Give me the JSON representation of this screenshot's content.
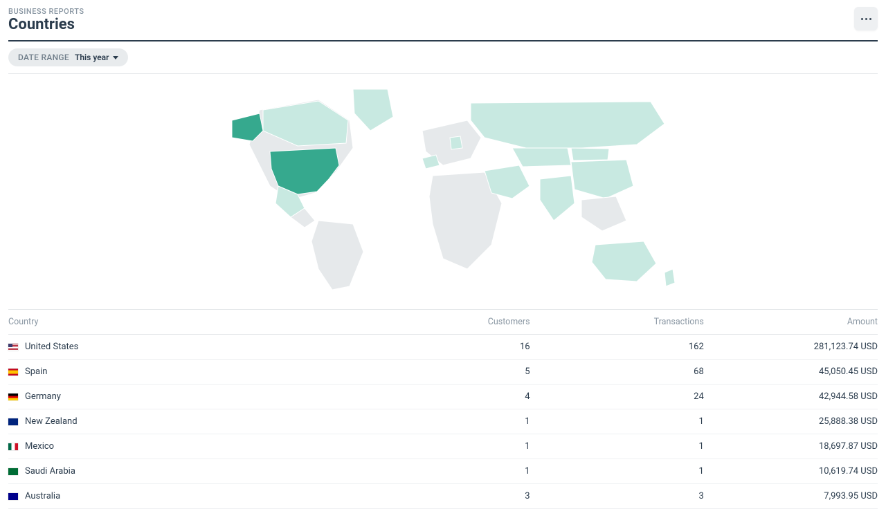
{
  "header": {
    "breadcrumb": "BUSINESS REPORTS",
    "title": "Countries"
  },
  "filter": {
    "label": "DATE RANGE",
    "value": "This year"
  },
  "map": {
    "type": "choropleth-world",
    "background_color": "#ffffff",
    "default_fill": "#e6e9eb",
    "stroke": "#ffffff",
    "highlight_strong": "#36a98e",
    "highlight_light": "#c8e9e1",
    "highlighted_strong": [
      "United States"
    ],
    "highlighted_light": [
      "Spain",
      "Germany",
      "New Zealand",
      "Mexico",
      "Saudi Arabia",
      "Australia",
      "Russia",
      "China",
      "India",
      "Canada",
      "Kazakhstan",
      "Iran",
      "Mongolia",
      "Greenland"
    ]
  },
  "table": {
    "columns": [
      "Country",
      "Customers",
      "Transactions",
      "Amount"
    ],
    "currency": "USD",
    "rows": [
      {
        "flag": "us",
        "country": "United States",
        "customers": "16",
        "transactions": "162",
        "amount": "281,123.74 USD"
      },
      {
        "flag": "es",
        "country": "Spain",
        "customers": "5",
        "transactions": "68",
        "amount": "45,050.45 USD"
      },
      {
        "flag": "de",
        "country": "Germany",
        "customers": "4",
        "transactions": "24",
        "amount": "42,944.58 USD"
      },
      {
        "flag": "nz",
        "country": "New Zealand",
        "customers": "1",
        "transactions": "1",
        "amount": "25,888.38 USD"
      },
      {
        "flag": "mx",
        "country": "Mexico",
        "customers": "1",
        "transactions": "1",
        "amount": "18,697.87 USD"
      },
      {
        "flag": "sa",
        "country": "Saudi Arabia",
        "customers": "1",
        "transactions": "1",
        "amount": "10,619.74 USD"
      },
      {
        "flag": "au",
        "country": "Australia",
        "customers": "3",
        "transactions": "3",
        "amount": "7,993.95 USD"
      }
    ]
  }
}
